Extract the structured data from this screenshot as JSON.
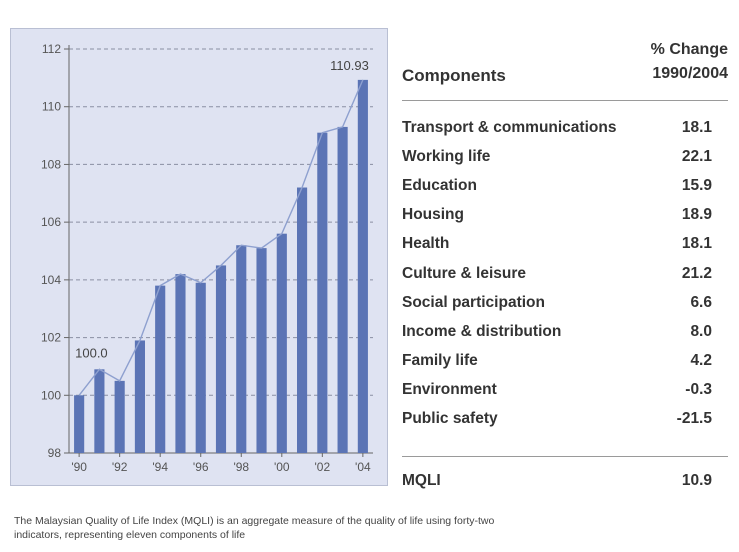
{
  "chart_data": {
    "type": "bar",
    "categories": [
      "'90",
      "'91",
      "'92",
      "'93",
      "'94",
      "'95",
      "'96",
      "'97",
      "'98",
      "'99",
      "'00",
      "'01",
      "'02",
      "'03",
      "'04"
    ],
    "x_tick_labels": [
      "'90",
      "'92",
      "'94",
      "'96",
      "'98",
      "'00",
      "'02",
      "'04"
    ],
    "values": [
      100.0,
      100.9,
      100.5,
      101.9,
      103.8,
      104.2,
      103.9,
      104.5,
      105.2,
      105.1,
      105.6,
      107.2,
      109.1,
      109.3,
      110.93
    ],
    "data_labels": {
      "first": "100.0",
      "last": "110.93"
    },
    "ylim": [
      98,
      112
    ],
    "yticks": [
      98,
      100,
      102,
      104,
      106,
      108,
      110,
      112
    ],
    "grid": "horizontal dashed",
    "overlay": "line through bar tops",
    "bar_color": "#5b74b5",
    "line_color": "#8ea0cf"
  },
  "table": {
    "header_components": "Components",
    "header_change_line1": "% Change",
    "header_change_line2": "1990/2004",
    "rows": [
      {
        "label": "Transport & communications",
        "value": "18.1"
      },
      {
        "label": "Working life",
        "value": "22.1"
      },
      {
        "label": "Education",
        "value": "15.9"
      },
      {
        "label": "Housing",
        "value": "18.9"
      },
      {
        "label": "Health",
        "value": "18.1"
      },
      {
        "label": "Culture & leisure",
        "value": "21.2"
      },
      {
        "label": "Social participation",
        "value": "6.6"
      },
      {
        "label": "Income & distribution",
        "value": "8.0"
      },
      {
        "label": "Family life",
        "value": "4.2"
      },
      {
        "label": "Environment",
        "value": "-0.3"
      },
      {
        "label": "Public safety",
        "value": "-21.5"
      }
    ],
    "total_label": "MQLI",
    "total_value": "10.9"
  },
  "footnote": {
    "line1": "The Malaysian Quality of Life Index (MQLI) is an aggregate measure of the quality of life using forty-two",
    "line2": "indicators, representing eleven components of life"
  }
}
